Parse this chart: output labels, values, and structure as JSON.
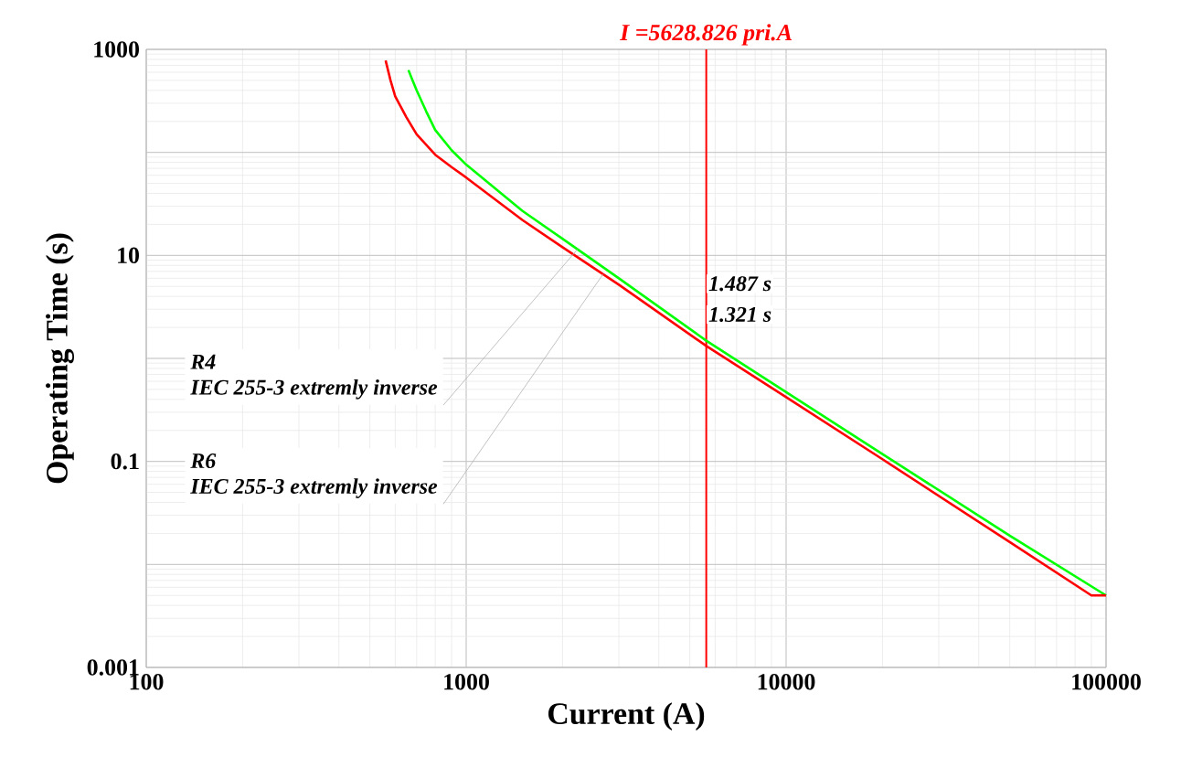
{
  "chart_data": {
    "type": "line",
    "xlabel": "Current (A)",
    "ylabel": "Operating Time (s)",
    "log": "xy",
    "grid": true,
    "xlim": [
      100,
      100000
    ],
    "xticks": [
      100,
      1000,
      10000,
      100000
    ],
    "ylim": [
      0.001,
      1000
    ],
    "yticks": [
      {
        "value": 0.001,
        "label": "0.001"
      },
      {
        "value": 0.01,
        "label": null
      },
      {
        "value": 0.1,
        "label": "0.1"
      },
      {
        "value": 1,
        "label": null
      },
      {
        "value": 10,
        "label": "10"
      },
      {
        "value": 100,
        "label": null
      },
      {
        "value": 1000,
        "label": "1000"
      }
    ],
    "series": [
      {
        "color": "#00ff00",
        "x": [
          660,
          680,
          700,
          750,
          800,
          900,
          1000,
          1500,
          2000,
          3000,
          5628.826,
          10000,
          20000,
          50000,
          100000
        ],
        "values": [
          630,
          500,
          400,
          250,
          165,
          105,
          76,
          27,
          14.5,
          6,
          1.487,
          0.47,
          0.118,
          0.019,
          0.005
        ]
      },
      {
        "color": "#ff0000",
        "x": [
          560,
          580,
          600,
          650,
          700,
          800,
          900,
          1000,
          1500,
          2000,
          3000,
          5628.826,
          10000,
          20000,
          50000,
          90000,
          100000
        ],
        "values": [
          780,
          500,
          350,
          220,
          150,
          95,
          72,
          57,
          22,
          12,
          5.2,
          1.321,
          0.42,
          0.105,
          0.0165,
          0.005,
          0.005
        ]
      }
    ],
    "annotations": [
      "R4",
      {
        "text": "IEC 255-3 extremly inverse",
        "x": 2230,
        "y": 11.5
      },
      "R6",
      {
        "text": "IEC 255-3 extremly inverse",
        "x": 2680,
        "y": 6.6
      },
      {
        "text": "1.487 s",
        "x": 5628.826,
        "y": 1.487
      },
      {
        "text": "1.321 s",
        "x": 5628.826,
        "y": 1.321
      }
    ],
    "ref_lines": [
      {
        "axis": "x",
        "value": 5628.826,
        "label": "I =5628.826 pri.A",
        "color": "#ff0000"
      }
    ]
  }
}
